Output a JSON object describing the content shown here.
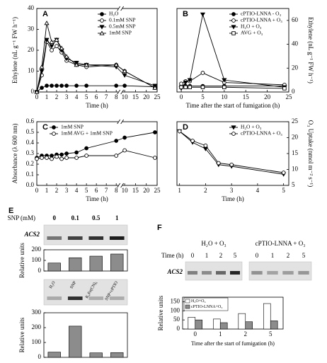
{
  "chart_data": [
    {
      "type": "line",
      "label": "A",
      "xlabel": "Time (h)",
      "ylabel": "Ethylene (nL g⁻¹ FW h⁻¹)",
      "axis_break": true,
      "yaxis_side": "left",
      "legend": "top-right",
      "x": [
        0,
        0.5,
        1,
        1.5,
        2,
        2.5,
        3,
        4,
        5,
        8,
        10,
        24
      ],
      "xlim": [
        0,
        25
      ],
      "xticks": [
        0,
        1,
        2,
        3,
        4,
        5,
        6,
        7,
        8,
        10,
        15,
        20,
        25
      ],
      "ylim": [
        0,
        40
      ],
      "yticks": [
        0,
        10,
        20,
        30,
        40
      ],
      "series": [
        {
          "name": "H₂O",
          "color": "#000000",
          "marker": "circle",
          "filled": true,
          "values": [
            0,
            2,
            3,
            3,
            3,
            3,
            3,
            3,
            3,
            3,
            3,
            2.5
          ]
        },
        {
          "name": "0.1mM SNP",
          "color": "#000000",
          "marker": "circle",
          "filled": false,
          "values": [
            0,
            8,
            24,
            20,
            22,
            19,
            15,
            13,
            12,
            13,
            10,
            2
          ]
        },
        {
          "name": "0.5mM SNP",
          "color": "#000000",
          "marker": "triangle-down",
          "filled": true,
          "values": [
            0,
            10,
            25,
            22,
            25,
            20,
            16,
            14,
            13,
            12,
            8,
            3
          ]
        },
        {
          "name": "1mM SNP",
          "color": "#000000",
          "marker": "triangle-up",
          "filled": false,
          "values": [
            0,
            12,
            33,
            24,
            25,
            21,
            17,
            13,
            13,
            13,
            10,
            2
          ]
        }
      ]
    },
    {
      "type": "line",
      "label": "B",
      "xlabel": "Time after the start of fumigation (h)",
      "ylabel": "Ethylene (nL g⁻¹ FW h⁻¹)",
      "axis_break": false,
      "yaxis_side": "right",
      "legend": "top-right",
      "x": [
        0,
        1,
        2,
        5,
        10,
        24
      ],
      "xlim": [
        -1,
        25
      ],
      "xticks": [
        0,
        5,
        10,
        15,
        20,
        25
      ],
      "ylim": [
        0,
        70
      ],
      "yticks": [
        0,
        20,
        40,
        60
      ],
      "series": [
        {
          "name": "cPTIO-LNNA - O₃",
          "color": "#000000",
          "marker": "circle",
          "filled": true,
          "values": [
            5,
            5,
            5,
            5,
            5,
            5
          ]
        },
        {
          "name": "cPTIO-LNNA + O₃",
          "color": "#000000",
          "marker": "circle",
          "filled": false,
          "values": [
            7,
            9,
            9,
            16,
            8,
            6
          ]
        },
        {
          "name": "H₂O + O₃",
          "color": "#000000",
          "marker": "triangle-down",
          "filled": true,
          "values": [
            3,
            8,
            10,
            65,
            10,
            4
          ]
        },
        {
          "name": "AVG + O₃",
          "color": "#000000",
          "marker": "square",
          "filled": false,
          "values": [
            4,
            4,
            4,
            4,
            4,
            3
          ]
        }
      ]
    },
    {
      "type": "line",
      "label": "C",
      "xlabel": "Time (h)",
      "ylabel": "Absorbance (λ 600 nm)",
      "axis_break": true,
      "yaxis_side": "left",
      "legend": "top-left",
      "x": [
        0,
        0.5,
        1,
        1.5,
        2,
        2.5,
        3,
        4,
        5,
        8,
        10,
        24
      ],
      "xlim": [
        0,
        25
      ],
      "xticks": [
        0,
        1,
        2,
        3,
        4,
        5,
        6,
        7,
        8,
        10,
        15,
        20,
        25
      ],
      "ylim": [
        0,
        0.6
      ],
      "yticks": [
        {
          "value": 0,
          "label": "0.0"
        },
        0.1,
        0.2,
        0.3,
        0.4,
        0.5,
        0.6
      ],
      "series": [
        {
          "name": "1mM SNP",
          "color": "#000000",
          "marker": "circle",
          "filled": true,
          "values": [
            0.26,
            0.28,
            0.28,
            0.28,
            0.29,
            0.29,
            0.3,
            0.31,
            0.35,
            0.42,
            0.45,
            0.5
          ]
        },
        {
          "name": "1mM AVG + 1mM SNP",
          "color": "#000000",
          "marker": "circle",
          "filled": false,
          "values": [
            0.25,
            0.26,
            0.26,
            0.25,
            0.27,
            0.25,
            0.26,
            0.26,
            0.28,
            0.28,
            0.33,
            0.26
          ]
        }
      ]
    },
    {
      "type": "line",
      "label": "D",
      "xlabel": "Time (h)",
      "ylabel": "O₃ Uptake (nmol m⁻² s⁻¹)",
      "axis_break": false,
      "yaxis_side": "right",
      "legend": "top-right",
      "x": [
        1,
        1.5,
        2,
        2.5,
        3,
        5
      ],
      "xlim": [
        0.9,
        5.2
      ],
      "xticks": [
        1,
        2,
        3,
        4,
        5
      ],
      "ylim": [
        5,
        25
      ],
      "yticks": [
        5,
        10,
        15,
        20,
        25
      ],
      "series": [
        {
          "name": "H₂O + O₃",
          "color": "#000000",
          "marker": "triangle-down",
          "filled": true,
          "values": [
            22,
            18.5,
            16.5,
            11.5,
            11,
            8.5
          ]
        },
        {
          "name": "cPTIO-LNNA + O₃",
          "color": "#000000",
          "marker": "circle",
          "filled": false,
          "values": [
            22,
            19,
            17.5,
            12,
            11.5,
            9
          ]
        }
      ]
    },
    {
      "type": "bar",
      "label": "E",
      "gel_title": "SNP (mM)",
      "gel_gene": "ACS2",
      "ylabel": "Relative units",
      "categories": [
        "0",
        "0.1",
        "0.5",
        "1"
      ],
      "values": [
        75,
        125,
        140,
        160
      ],
      "color": "#8c8c8c",
      "ylim": [
        0,
        200
      ],
      "yticks": [
        0,
        100,
        200
      ]
    },
    {
      "type": "bar",
      "ylabel": "Relative units",
      "categories": [
        "H₂O",
        "SNP",
        "K₄Fe(CN)₆",
        "SNP+cPTIO"
      ],
      "values": [
        35,
        210,
        30,
        32
      ],
      "color": "#8c8c8c",
      "ylim": [
        0,
        300
      ],
      "yticks": [
        0,
        100,
        200,
        300
      ]
    },
    {
      "type": "grouped_bar",
      "label": "F",
      "gel_groups": [
        "H₂O + O₃",
        "cPTIO-LNNA + O₃"
      ],
      "gel_time_label": "Time (h)",
      "gel_gene": "ACS2",
      "xlabel": "Time after the start of fumigation (h)",
      "ylabel": "Relative units",
      "categories": [
        "0",
        "1",
        "2",
        "5"
      ],
      "ylim": [
        0,
        175
      ],
      "yticks": [
        0,
        50,
        100,
        150
      ],
      "series": [
        {
          "name": "H₂O+O₃",
          "color": "#ffffff",
          "values": [
            65,
            55,
            85,
            140
          ]
        },
        {
          "name": "cPTIO-LNNA+O₃",
          "color": "#8c8c8c",
          "values": [
            50,
            35,
            40,
            45
          ]
        }
      ]
    }
  ]
}
